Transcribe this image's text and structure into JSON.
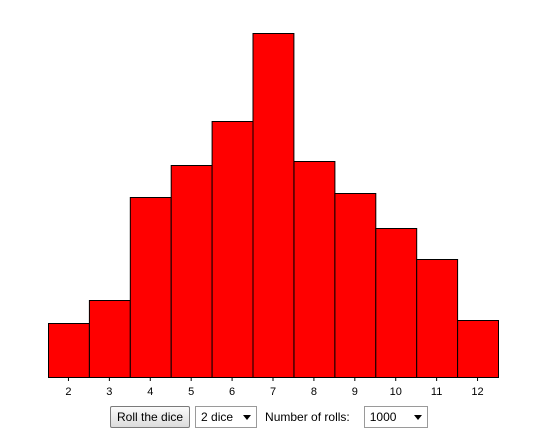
{
  "chart_data": {
    "type": "bar",
    "title": "",
    "xlabel": "",
    "ylabel": "",
    "categories": [
      "2",
      "3",
      "4",
      "5",
      "6",
      "7",
      "8",
      "9",
      "10",
      "11",
      "12"
    ],
    "values": [
      54,
      77,
      180,
      212,
      256,
      344,
      216,
      184,
      149,
      118,
      57
    ],
    "ylim": [
      0,
      344
    ],
    "grid": false,
    "bar_color": "#ff0000",
    "bar_border": "#000000"
  },
  "controls": {
    "roll_button_label": "Roll the dice",
    "dice_select_value": "2 dice",
    "rolls_label": "Number of rolls:",
    "rolls_select_value": "1000"
  }
}
